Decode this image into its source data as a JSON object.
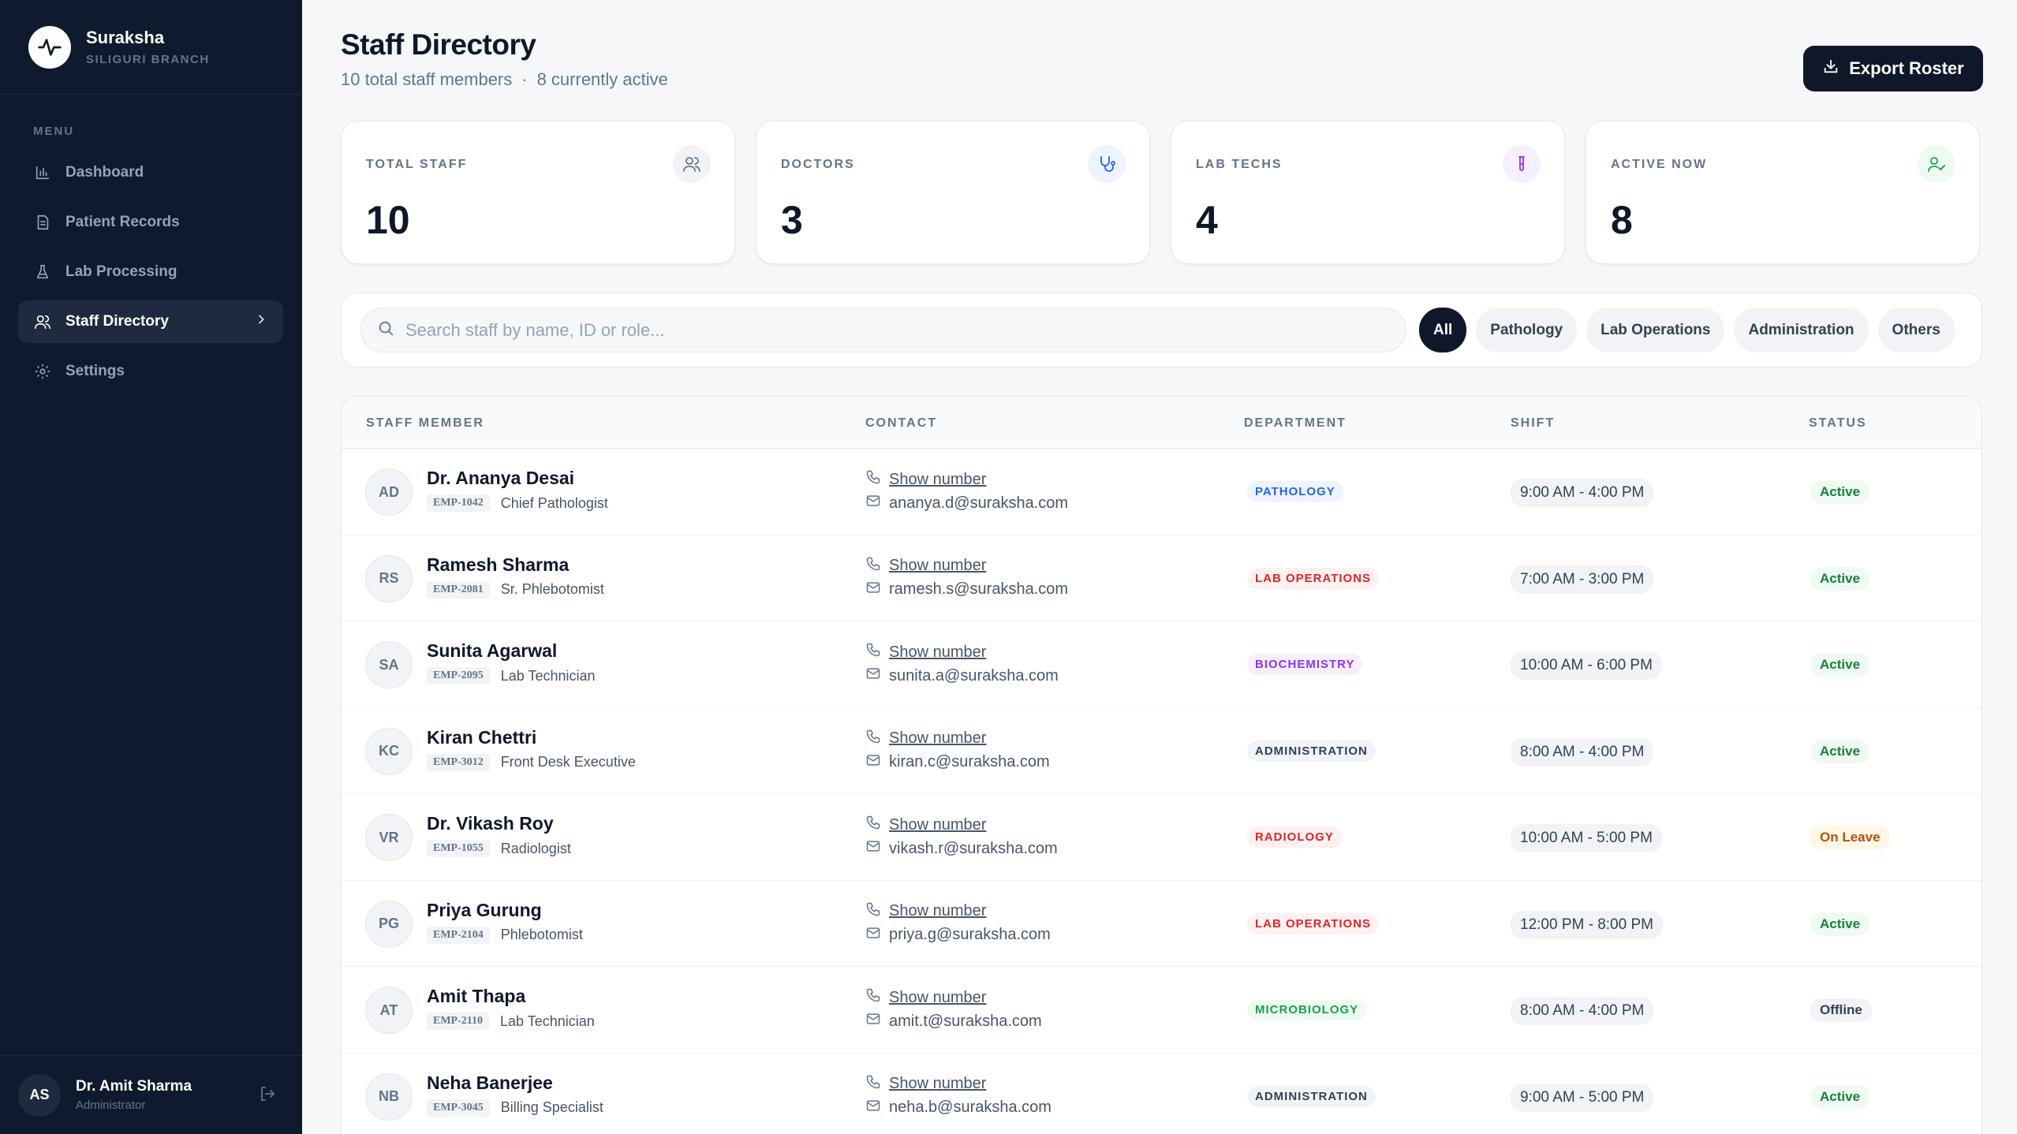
{
  "brand": {
    "name": "Suraksha",
    "branch": "SILIGURI BRANCH"
  },
  "menu_label": "MENU",
  "nav": [
    {
      "label": "Dashboard",
      "icon": "bar-chart-icon"
    },
    {
      "label": "Patient Records",
      "icon": "document-icon"
    },
    {
      "label": "Lab Processing",
      "icon": "flask-icon"
    },
    {
      "label": "Staff Directory",
      "icon": "users-icon",
      "active": true
    },
    {
      "label": "Settings",
      "icon": "gear-icon"
    }
  ],
  "user": {
    "initials": "AS",
    "name": "Dr. Amit Sharma",
    "role": "Administrator"
  },
  "header": {
    "title": "Staff Directory",
    "total_text": "10 total staff members",
    "separator": "·",
    "active_text": "8 currently active",
    "export_label": "Export Roster"
  },
  "stats": [
    {
      "label": "TOTAL STAFF",
      "value": "10",
      "icon": "users-icon",
      "color": "#64748b",
      "bg": "#f1f3f6"
    },
    {
      "label": "DOCTORS",
      "value": "3",
      "icon": "stethoscope-icon",
      "color": "#2563eb",
      "bg": "#eef4ff"
    },
    {
      "label": "LAB TECHS",
      "value": "4",
      "icon": "test-tube-icon",
      "color": "#9333ea",
      "bg": "#f6efff"
    },
    {
      "label": "ACTIVE NOW",
      "value": "8",
      "icon": "user-check-icon",
      "color": "#16a34a",
      "bg": "#eefbf2"
    }
  ],
  "search": {
    "placeholder": "Search staff by name, ID or role...",
    "value": ""
  },
  "filters": [
    {
      "label": "All",
      "active": true
    },
    {
      "label": "Pathology"
    },
    {
      "label": "Lab Operations"
    },
    {
      "label": "Administration"
    },
    {
      "label": "Others"
    }
  ],
  "table": {
    "columns": [
      "STAFF MEMBER",
      "CONTACT",
      "DEPARTMENT",
      "SHIFT",
      "STATUS"
    ],
    "rows": [
      {
        "initials": "AD",
        "name": "Dr. Ananya Desai",
        "emp": "EMP-1042",
        "role": "Chief Pathologist",
        "phone": "Show number",
        "email": "ananya.d@suraksha.com",
        "dept": "PATHOLOGY",
        "dept_class": "d-pathology",
        "shift": "9:00 AM - 4:00 PM",
        "status": "Active",
        "status_class": "s-active"
      },
      {
        "initials": "RS",
        "name": "Ramesh Sharma",
        "emp": "EMP-2081",
        "role": "Sr. Phlebotomist",
        "phone": "Show number",
        "email": "ramesh.s@suraksha.com",
        "dept": "LAB OPERATIONS",
        "dept_class": "d-labops",
        "shift": "7:00 AM - 3:00 PM",
        "status": "Active",
        "status_class": "s-active"
      },
      {
        "initials": "SA",
        "name": "Sunita Agarwal",
        "emp": "EMP-2095",
        "role": "Lab Technician",
        "phone": "Show number",
        "email": "sunita.a@suraksha.com",
        "dept": "BIOCHEMISTRY",
        "dept_class": "d-biochem",
        "shift": "10:00 AM - 6:00 PM",
        "status": "Active",
        "status_class": "s-active"
      },
      {
        "initials": "KC",
        "name": "Kiran Chettri",
        "emp": "EMP-3012",
        "role": "Front Desk Executive",
        "phone": "Show number",
        "email": "kiran.c@suraksha.com",
        "dept": "ADMINISTRATION",
        "dept_class": "d-admin",
        "shift": "8:00 AM - 4:00 PM",
        "status": "Active",
        "status_class": "s-active"
      },
      {
        "initials": "VR",
        "name": "Dr. Vikash Roy",
        "emp": "EMP-1055",
        "role": "Radiologist",
        "phone": "Show number",
        "email": "vikash.r@suraksha.com",
        "dept": "RADIOLOGY",
        "dept_class": "d-radiology",
        "shift": "10:00 AM - 5:00 PM",
        "status": "On Leave",
        "status_class": "s-leave"
      },
      {
        "initials": "PG",
        "name": "Priya Gurung",
        "emp": "EMP-2104",
        "role": "Phlebotomist",
        "phone": "Show number",
        "email": "priya.g@suraksha.com",
        "dept": "LAB OPERATIONS",
        "dept_class": "d-labops",
        "shift": "12:00 PM - 8:00 PM",
        "status": "Active",
        "status_class": "s-active"
      },
      {
        "initials": "AT",
        "name": "Amit Thapa",
        "emp": "EMP-2110",
        "role": "Lab Technician",
        "phone": "Show number",
        "email": "amit.t@suraksha.com",
        "dept": "MICROBIOLOGY",
        "dept_class": "d-micro",
        "shift": "8:00 AM - 4:00 PM",
        "status": "Offline",
        "status_class": "s-offline"
      },
      {
        "initials": "NB",
        "name": "Neha Banerjee",
        "emp": "EMP-3045",
        "role": "Billing Specialist",
        "phone": "Show number",
        "email": "neha.b@suraksha.com",
        "dept": "ADMINISTRATION",
        "dept_class": "d-admin",
        "shift": "9:00 AM - 5:00 PM",
        "status": "Active",
        "status_class": "s-active"
      }
    ]
  }
}
